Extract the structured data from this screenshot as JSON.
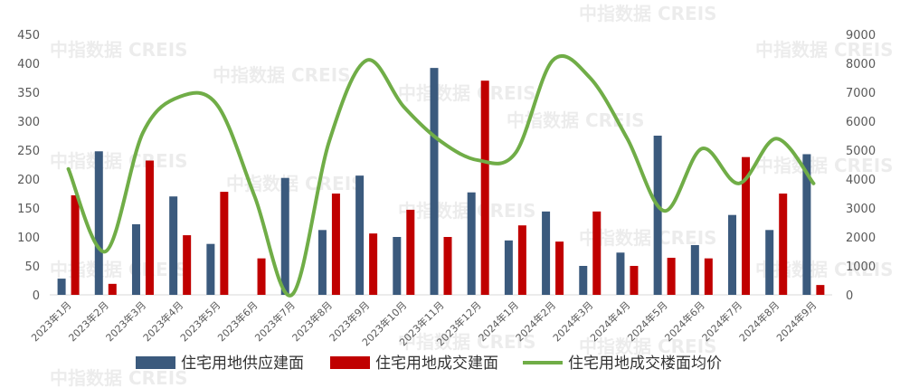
{
  "chart_data": {
    "type": "bar",
    "categories": [
      "2023年1月",
      "2023年2月",
      "2023年3月",
      "2023年4月",
      "2023年5月",
      "2023年6月",
      "2023年7月",
      "2023年8月",
      "2023年9月",
      "2023年10月",
      "2023年11月",
      "2023年12月",
      "2024年1月",
      "2024年2月",
      "2024年3月",
      "2024年4月",
      "2024年5月",
      "2024年6月",
      "2024年7月",
      "2024年8月",
      "2024年9月"
    ],
    "series": [
      {
        "name": "住宅用地供应建面",
        "type": "bar",
        "axis": "left",
        "color": "#3b5a7d",
        "values": [
          28,
          248,
          122,
          170,
          88,
          0,
          202,
          112,
          206,
          100,
          392,
          177,
          94,
          144,
          50,
          73,
          275,
          86,
          138,
          112,
          243
        ]
      },
      {
        "name": "住宅用地成交建面",
        "type": "bar",
        "axis": "left",
        "color": "#c00000",
        "values": [
          172,
          19,
          232,
          103,
          178,
          63,
          0,
          175,
          106,
          147,
          100,
          370,
          120,
          92,
          144,
          50,
          64,
          63,
          238,
          175,
          17
        ]
      },
      {
        "name": "住宅用地成交楼面均价",
        "type": "line",
        "axis": "right",
        "color": "#70ad47",
        "values": [
          4350,
          1500,
          5600,
          6850,
          6550,
          3400,
          0,
          5300,
          8100,
          6500,
          5300,
          4650,
          4900,
          8100,
          7500,
          5400,
          2900,
          5050,
          3850,
          5400,
          3850
        ]
      }
    ],
    "ylim": [
      0,
      450
    ],
    "yticks": [
      0,
      50,
      100,
      150,
      200,
      250,
      300,
      350,
      400,
      450
    ],
    "y2lim": [
      0,
      9000
    ],
    "y2ticks": [
      0,
      1000,
      2000,
      3000,
      4000,
      5000,
      6000,
      7000,
      8000,
      9000
    ],
    "grid": false,
    "legend_position": "bottom",
    "watermark": "中指数据 CREIS"
  }
}
